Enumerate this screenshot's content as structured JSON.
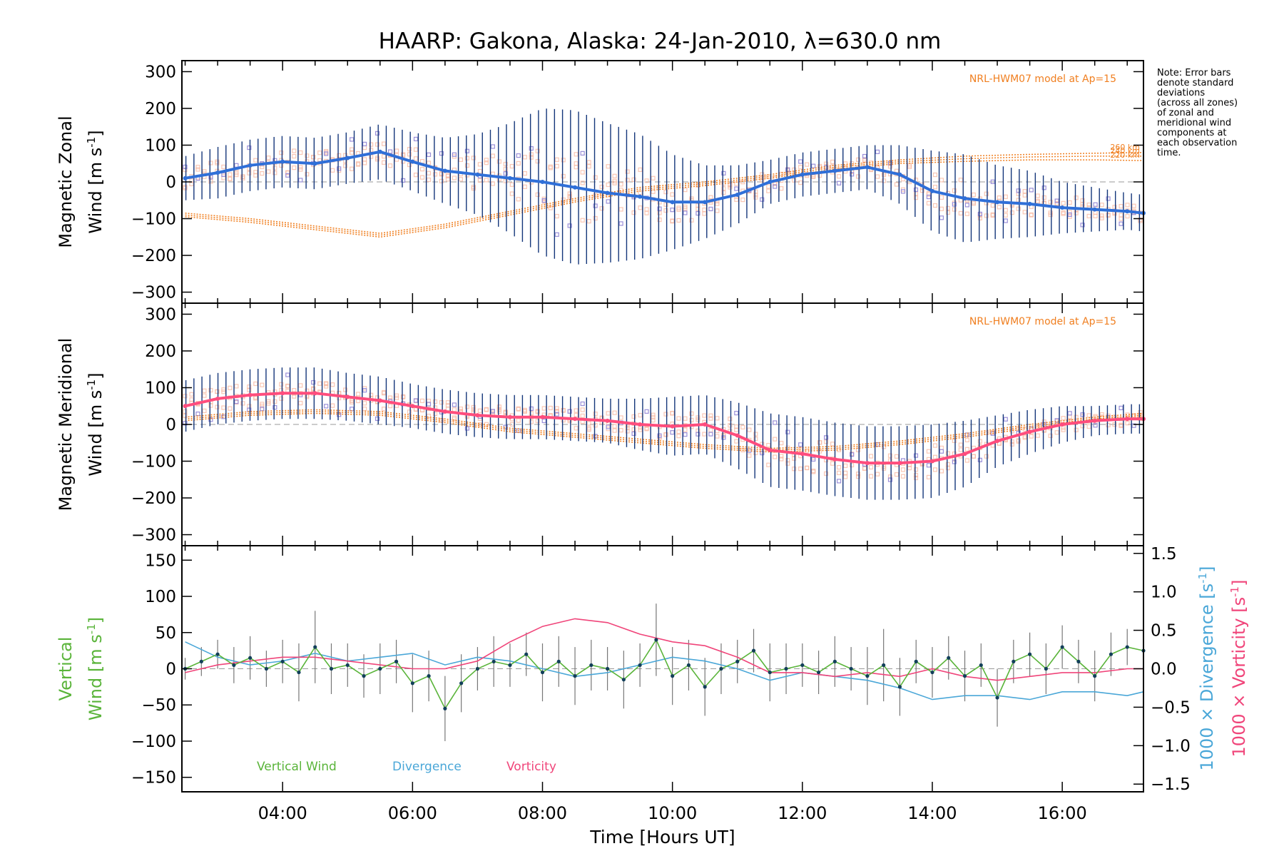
{
  "title": "HAARP: Gakona,  Alaska: 24-Jan-2010, λ=630.0 nm",
  "note_lines": [
    "Note: Error bars",
    "denote standard",
    "deviations",
    "(across all zones)",
    "of zonal and",
    "meridional wind",
    "components at",
    "each observation",
    "time."
  ],
  "colors": {
    "zonal": "#2f6fd8",
    "meridional": "#ff4d7d",
    "vertical": "#5ab43a",
    "divergence": "#4aa7d8",
    "vorticity": "#f0457a",
    "model": "#f07f20",
    "errorbar": "#14367a",
    "scatter": "#9a8fd8",
    "zone_fill": "#f7b9a3",
    "vertical_point": "#123f5a"
  },
  "chart_data": [
    {
      "type": "line",
      "name": "zonal",
      "title": "",
      "ylabel": "Magnetic Zonal Wind [m s⁻¹]",
      "ylabel_line1": "Magnetic Zonal",
      "ylabel_line2": "Wind [m s",
      "ylabel_exp": "-1",
      "ylabel_close": "]",
      "ylim": [
        -330,
        330
      ],
      "yticks": [
        "300",
        "200",
        "100",
        "0",
        "−100",
        "−200",
        "−300"
      ],
      "ytick_values": [
        300,
        200,
        100,
        0,
        -100,
        -200,
        -300
      ],
      "xlim": [
        2.45,
        17.25
      ],
      "model_label": "NRL-HWM07 model at Ap=15",
      "model_height_labels": [
        "260 km",
        "240 km",
        "220 km"
      ],
      "series": [
        {
          "x": [
            2.5,
            3.0,
            3.5,
            4.0,
            4.5,
            5.0,
            5.5,
            6.0,
            6.5,
            7.0,
            7.5,
            8.0,
            8.5,
            9.0,
            9.5,
            10.0,
            10.5,
            11.0,
            11.5,
            12.0,
            12.5,
            13.0,
            13.5,
            14.0,
            14.5,
            15.0,
            15.5,
            16.0,
            16.5,
            17.0,
            17.25
          ],
          "values": [
            10,
            25,
            45,
            55,
            50,
            65,
            82,
            55,
            30,
            20,
            10,
            0,
            -15,
            -30,
            -40,
            -55,
            -55,
            -35,
            0,
            20,
            30,
            40,
            20,
            -25,
            -45,
            -55,
            -60,
            -70,
            -75,
            -80,
            -85
          ],
          "std": [
            60,
            70,
            70,
            70,
            70,
            70,
            75,
            80,
            90,
            110,
            150,
            200,
            210,
            190,
            170,
            130,
            100,
            80,
            60,
            60,
            60,
            60,
            80,
            110,
            120,
            100,
            90,
            70,
            60,
            50,
            50
          ]
        }
      ],
      "model": [
        {
          "height": "260 km",
          "x": [
            2.5,
            3.5,
            4.5,
            5.5,
            6.5,
            7.5,
            8.5,
            9.5,
            10.5,
            11.5,
            12.5,
            13.5,
            14.5,
            15.5,
            16.5,
            17.25
          ],
          "values": [
            -85,
            -100,
            -120,
            -140,
            -115,
            -80,
            -45,
            -15,
            0,
            20,
            45,
            60,
            70,
            75,
            78,
            80
          ]
        },
        {
          "height": "240 km",
          "x": [
            2.5,
            3.5,
            4.5,
            5.5,
            6.5,
            7.5,
            8.5,
            9.5,
            10.5,
            11.5,
            12.5,
            13.5,
            14.5,
            15.5,
            16.5,
            17.25
          ],
          "values": [
            -90,
            -105,
            -125,
            -145,
            -120,
            -85,
            -50,
            -20,
            -5,
            15,
            40,
            55,
            63,
            68,
            70,
            70
          ]
        },
        {
          "height": "220 km",
          "x": [
            2.5,
            3.5,
            4.5,
            5.5,
            6.5,
            7.5,
            8.5,
            9.5,
            10.5,
            11.5,
            12.5,
            13.5,
            14.5,
            15.5,
            16.5,
            17.25
          ],
          "values": [
            -95,
            -110,
            -130,
            -150,
            -125,
            -90,
            -55,
            -25,
            -10,
            10,
            35,
            50,
            56,
            60,
            60,
            58
          ]
        }
      ]
    },
    {
      "type": "line",
      "name": "meridional",
      "title": "",
      "ylabel": "Magnetic Meridional Wind [m s⁻¹]",
      "ylabel_line1": "Magnetic Meridional",
      "ylabel_line2": "Wind [m s",
      "ylabel_exp": "-1",
      "ylabel_close": "]",
      "ylim": [
        -330,
        330
      ],
      "yticks": [
        "300",
        "200",
        "100",
        "0",
        "−100",
        "−200",
        "−300"
      ],
      "ytick_values": [
        300,
        200,
        100,
        0,
        -100,
        -200,
        -300
      ],
      "xlim": [
        2.45,
        17.25
      ],
      "model_label": "NRL-HWM07 model at Ap=15",
      "series": [
        {
          "x": [
            2.5,
            3.0,
            3.5,
            4.0,
            4.5,
            5.0,
            5.5,
            6.0,
            6.5,
            7.0,
            7.5,
            8.0,
            8.5,
            9.0,
            9.5,
            10.0,
            10.5,
            11.0,
            11.5,
            12.0,
            12.5,
            13.0,
            13.5,
            14.0,
            14.5,
            15.0,
            15.5,
            16.0,
            16.5,
            17.0,
            17.25
          ],
          "values": [
            50,
            70,
            80,
            85,
            85,
            75,
            65,
            50,
            35,
            25,
            20,
            20,
            15,
            10,
            0,
            -5,
            0,
            -30,
            -70,
            -80,
            -95,
            -105,
            -105,
            -100,
            -80,
            -45,
            -20,
            0,
            10,
            15,
            15
          ],
          "std": [
            70,
            70,
            70,
            70,
            70,
            65,
            65,
            60,
            60,
            60,
            60,
            60,
            60,
            60,
            70,
            80,
            80,
            90,
            100,
            100,
            100,
            100,
            100,
            100,
            90,
            70,
            60,
            50,
            40,
            40,
            40
          ]
        }
      ],
      "model": [
        {
          "height": "260 km",
          "x": [
            2.5,
            3.5,
            4.5,
            5.5,
            6.5,
            7.5,
            8.5,
            9.5,
            10.5,
            11.5,
            12.5,
            13.5,
            14.5,
            15.5,
            16.5,
            17.25
          ],
          "values": [
            20,
            35,
            40,
            35,
            15,
            -10,
            -25,
            -40,
            -55,
            -65,
            -60,
            -45,
            -25,
            0,
            20,
            30
          ]
        },
        {
          "height": "240 km",
          "x": [
            2.5,
            3.5,
            4.5,
            5.5,
            6.5,
            7.5,
            8.5,
            9.5,
            10.5,
            11.5,
            12.5,
            13.5,
            14.5,
            15.5,
            16.5,
            17.25
          ],
          "values": [
            15,
            30,
            35,
            30,
            10,
            -15,
            -30,
            -45,
            -60,
            -70,
            -65,
            -50,
            -30,
            -5,
            15,
            25
          ]
        },
        {
          "height": "220 km",
          "x": [
            2.5,
            3.5,
            4.5,
            5.5,
            6.5,
            7.5,
            8.5,
            9.5,
            10.5,
            11.5,
            12.5,
            13.5,
            14.5,
            15.5,
            16.5,
            17.25
          ],
          "values": [
            10,
            25,
            30,
            25,
            5,
            -20,
            -35,
            -50,
            -65,
            -75,
            -70,
            -55,
            -35,
            -10,
            10,
            20
          ]
        }
      ]
    },
    {
      "type": "line",
      "name": "vertical",
      "title": "",
      "ylabel_line1": "Vertical",
      "ylabel_line2": "Wind [m s",
      "ylabel_exp": "-1",
      "ylabel_close": "]",
      "y2label": "1000 × Divergence [s⁻¹]",
      "y2label_a_text": "1000 × Divergence [s",
      "y3label_a_text": "1000 × Vorticity [s",
      "y2label_exp": "-1",
      "y2label_close": "]",
      "ylim": [
        -170,
        170
      ],
      "yticks": [
        "150",
        "100",
        "50",
        "0",
        "−50",
        "−100",
        "−150"
      ],
      "ytick_values": [
        150,
        100,
        50,
        0,
        -50,
        -100,
        -150
      ],
      "y2lim": [
        -1.6,
        1.6
      ],
      "y2ticks": [
        "1.5",
        "1.0",
        "0.5",
        "0.0",
        "−0.5",
        "−1.0",
        "−1.5"
      ],
      "y2tick_values": [
        1.5,
        1.0,
        0.5,
        0.0,
        -0.5,
        -1.0,
        -1.5
      ],
      "xlim": [
        2.45,
        17.25
      ],
      "xticks": [
        "04:00",
        "06:00",
        "08:00",
        "10:00",
        "12:00",
        "14:00",
        "16:00"
      ],
      "xtick_values": [
        4,
        6,
        8,
        10,
        12,
        14,
        16
      ],
      "xlabel": "Time [Hours UT]",
      "legend": [
        "Vertical Wind",
        "Divergence",
        "Vorticity"
      ],
      "series": [
        {
          "name": "Vertical Wind",
          "x": [
            2.5,
            2.75,
            3.0,
            3.25,
            3.5,
            3.75,
            4.0,
            4.25,
            4.5,
            4.75,
            5.0,
            5.25,
            5.5,
            5.75,
            6.0,
            6.25,
            6.5,
            6.75,
            7.0,
            7.25,
            7.5,
            7.75,
            8.0,
            8.25,
            8.5,
            8.75,
            9.0,
            9.25,
            9.5,
            9.75,
            10.0,
            10.25,
            10.5,
            10.75,
            11.0,
            11.25,
            11.5,
            11.75,
            12.0,
            12.25,
            12.5,
            12.75,
            13.0,
            13.25,
            13.5,
            13.75,
            14.0,
            14.25,
            14.5,
            14.75,
            15.0,
            15.25,
            15.5,
            15.75,
            16.0,
            16.25,
            16.5,
            16.75,
            17.0,
            17.25
          ],
          "values": [
            0,
            10,
            20,
            5,
            15,
            0,
            10,
            -5,
            30,
            0,
            5,
            -10,
            0,
            10,
            -20,
            -10,
            -55,
            -20,
            0,
            10,
            5,
            20,
            -5,
            10,
            -10,
            5,
            0,
            -15,
            5,
            40,
            -10,
            5,
            -25,
            0,
            10,
            25,
            -5,
            0,
            5,
            -5,
            10,
            0,
            -10,
            5,
            -25,
            10,
            -5,
            15,
            -10,
            5,
            -40,
            10,
            20,
            0,
            30,
            10,
            -10,
            20,
            30,
            25
          ],
          "err": [
            15,
            20,
            20,
            25,
            30,
            25,
            30,
            40,
            50,
            35,
            30,
            30,
            35,
            30,
            40,
            35,
            45,
            40,
            30,
            35,
            30,
            30,
            40,
            35,
            40,
            35,
            30,
            40,
            30,
            50,
            40,
            35,
            40,
            35,
            30,
            30,
            40,
            35,
            30,
            30,
            35,
            30,
            40,
            50,
            40,
            30,
            35,
            30,
            35,
            30,
            40,
            30,
            30,
            35,
            30,
            30,
            35,
            30,
            25,
            25
          ]
        },
        {
          "name": "Divergence",
          "x": [
            2.5,
            3.0,
            3.5,
            4.0,
            4.5,
            5.0,
            5.5,
            6.0,
            6.5,
            7.0,
            7.5,
            8.0,
            8.5,
            9.0,
            9.5,
            10.0,
            10.5,
            11.0,
            11.5,
            12.0,
            12.5,
            13.0,
            13.5,
            14.0,
            14.5,
            15.0,
            15.5,
            16.0,
            16.5,
            17.0,
            17.25
          ],
          "values": [
            0.35,
            0.15,
            0.05,
            0.1,
            0.2,
            0.1,
            0.15,
            0.2,
            0.05,
            0.15,
            0.1,
            0.0,
            -0.1,
            -0.05,
            0.05,
            0.15,
            0.1,
            0.0,
            -0.15,
            -0.05,
            -0.1,
            -0.15,
            -0.25,
            -0.4,
            -0.35,
            -0.35,
            -0.4,
            -0.3,
            -0.3,
            -0.35,
            -0.3
          ]
        },
        {
          "name": "Vorticity",
          "x": [
            2.5,
            3.0,
            3.5,
            4.0,
            4.5,
            5.0,
            5.5,
            6.0,
            6.5,
            7.0,
            7.5,
            8.0,
            8.5,
            9.0,
            9.5,
            10.0,
            10.5,
            11.0,
            11.5,
            12.0,
            12.5,
            13.0,
            13.5,
            14.0,
            14.5,
            15.0,
            15.5,
            16.0,
            16.5,
            17.0,
            17.25
          ],
          "values": [
            -0.05,
            0.05,
            0.1,
            0.15,
            0.15,
            0.1,
            0.05,
            0.0,
            0.0,
            0.1,
            0.35,
            0.55,
            0.65,
            0.6,
            0.45,
            0.35,
            0.3,
            0.15,
            -0.05,
            -0.05,
            -0.1,
            -0.05,
            -0.1,
            0.0,
            -0.1,
            -0.15,
            -0.1,
            -0.05,
            -0.05,
            0.0,
            0.0
          ]
        }
      ]
    }
  ]
}
